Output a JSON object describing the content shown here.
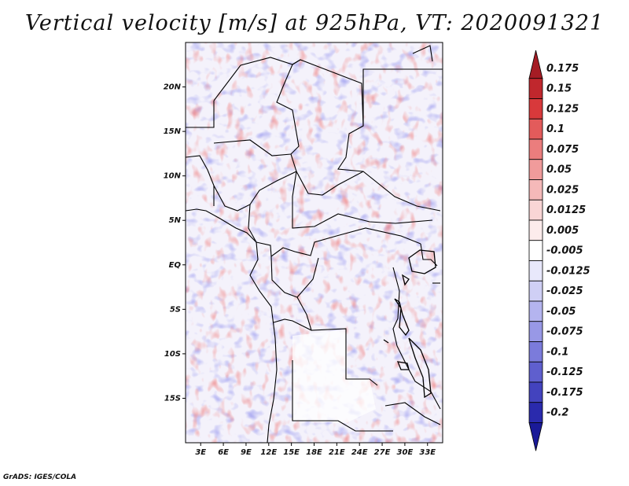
{
  "title": "Vertical velocity [m/s] at 925hPa, VT: 2020091321",
  "footer": "GrADS: IGES/COLA",
  "map": {
    "lon_range": [
      1,
      35
    ],
    "lat_range": [
      -20,
      25
    ],
    "lon_labels": [
      "3E",
      "6E",
      "9E",
      "12E",
      "15E",
      "18E",
      "21E",
      "24E",
      "27E",
      "30E",
      "33E"
    ],
    "lon_values": [
      3,
      6,
      9,
      12,
      15,
      18,
      21,
      24,
      27,
      30,
      33
    ],
    "lat_labels": [
      "20N",
      "15N",
      "10N",
      "5N",
      "EQ",
      "5S",
      "10S",
      "15S"
    ],
    "lat_values": [
      20,
      15,
      10,
      5,
      0,
      -5,
      -10,
      -15
    ]
  },
  "colorbar": {
    "labels": [
      "0.175",
      "0.15",
      "0.125",
      "0.1",
      "0.075",
      "0.05",
      "0.025",
      "0.0125",
      "0.005",
      "-0.005",
      "-0.0125",
      "-0.025",
      "-0.05",
      "-0.075",
      "-0.1",
      "-0.125",
      "-0.175",
      "-0.2"
    ],
    "colors": [
      "#a51c24",
      "#c0272d",
      "#d8393b",
      "#e35b5b",
      "#eb7d7d",
      "#f09b9b",
      "#f5b9b9",
      "#f9d5d5",
      "#fcecec",
      "#ffffff",
      "#e8e8fb",
      "#cfcff5",
      "#b4b4ef",
      "#9898e6",
      "#7b7bdb",
      "#5f5fce",
      "#4343be",
      "#2a2aad",
      "#1a1a98"
    ]
  }
}
